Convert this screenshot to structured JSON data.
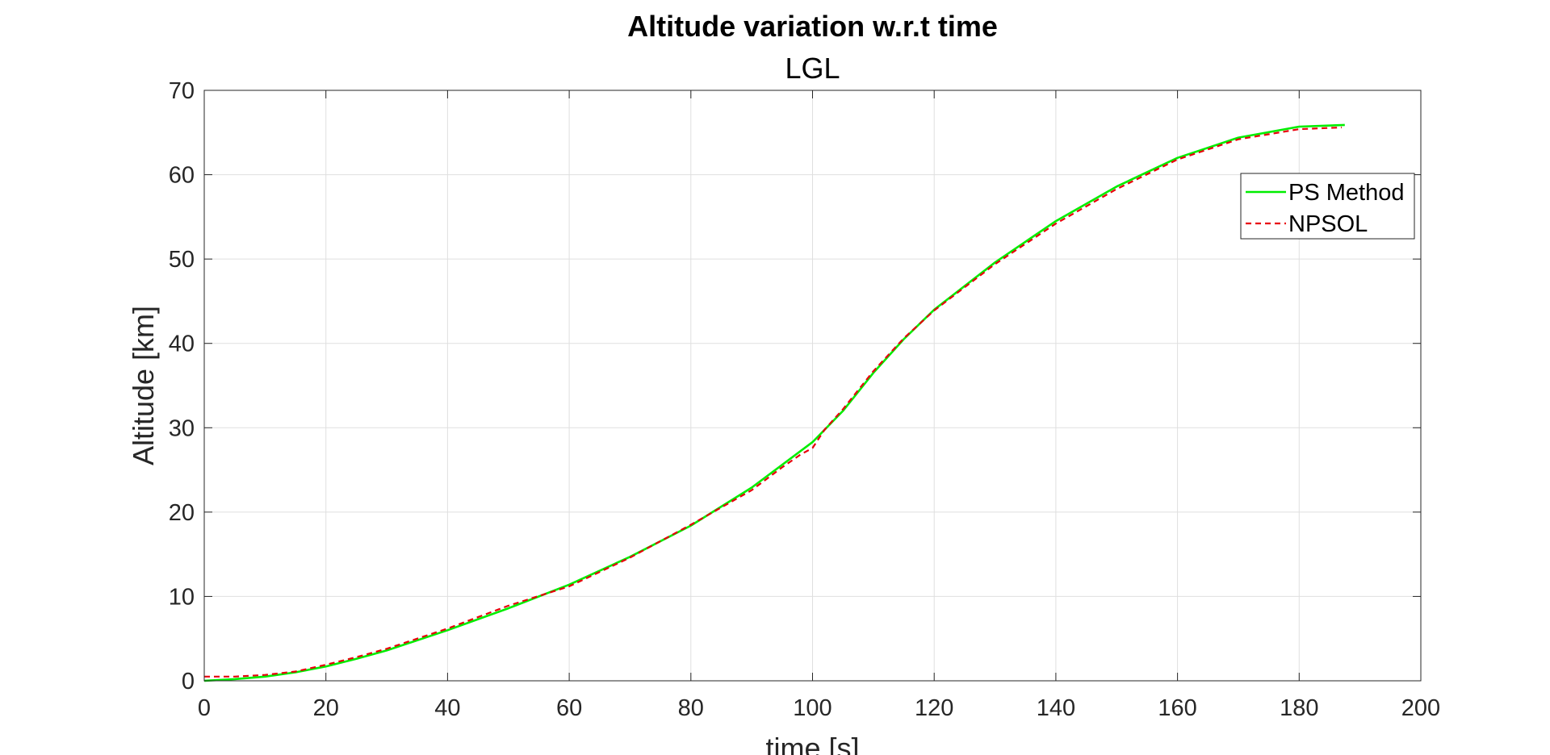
{
  "chart_data": {
    "type": "line",
    "title": "Altitude variation w.r.t time",
    "subtitle": "LGL",
    "xlabel": "time [s]",
    "ylabel": "Altitude [km]",
    "xlim": [
      0,
      200
    ],
    "ylim": [
      0,
      70
    ],
    "xticks": [
      0,
      20,
      40,
      60,
      80,
      100,
      120,
      140,
      160,
      180,
      200
    ],
    "yticks": [
      0,
      10,
      20,
      30,
      40,
      50,
      60,
      70
    ],
    "grid": true,
    "legend_position": "top-right",
    "series": [
      {
        "name": "PS Method",
        "color": "#00ee00",
        "style": "solid",
        "x": [
          0,
          5,
          10,
          15,
          20,
          25,
          30,
          40,
          50,
          60,
          70,
          80,
          90,
          100,
          105,
          110,
          115,
          120,
          130,
          140,
          150,
          160,
          170,
          180,
          187.5
        ],
        "y": [
          0,
          0.2,
          0.5,
          1.0,
          1.7,
          2.6,
          3.6,
          6.0,
          8.6,
          11.4,
          14.7,
          18.4,
          22.9,
          28.3,
          32.0,
          36.5,
          40.5,
          44.0,
          49.6,
          54.5,
          58.6,
          62.0,
          64.4,
          65.7,
          65.9
        ]
      },
      {
        "name": "NPSOL",
        "color": "#e8000b",
        "style": "dashed",
        "x": [
          0,
          5,
          10,
          15,
          20,
          25,
          30,
          40,
          50,
          60,
          70,
          80,
          90,
          95,
          98,
          100,
          102,
          105,
          110,
          115,
          120,
          130,
          140,
          150,
          160,
          170,
          180,
          187
        ],
        "y": [
          0.5,
          0.5,
          0.7,
          1.1,
          1.9,
          2.8,
          3.8,
          6.2,
          8.9,
          11.2,
          14.6,
          18.5,
          22.6,
          25.3,
          26.8,
          27.6,
          29.8,
          32.2,
          36.7,
          40.6,
          43.9,
          49.4,
          54.2,
          58.3,
          61.8,
          64.2,
          65.4,
          65.6
        ]
      }
    ]
  }
}
